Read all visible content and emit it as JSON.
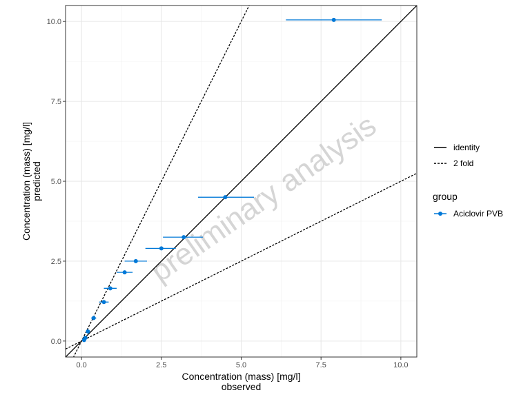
{
  "chart_data": {
    "type": "scatter",
    "xlabel_line1": "Concentration (mass) [mg/l]",
    "xlabel_line2": "observed",
    "ylabel_line1": "Concentration (mass) [mg/l]",
    "ylabel_line2": "predicted",
    "xlim": [
      -0.5,
      10.5
    ],
    "ylim": [
      -0.5,
      10.5
    ],
    "x_ticks": [
      0,
      2.5,
      5,
      7.5,
      10
    ],
    "x_tick_labels": [
      "0.0",
      "2.5",
      "5.0",
      "7.5",
      "10.0"
    ],
    "y_ticks": [
      0,
      2.5,
      5,
      7.5,
      10
    ],
    "y_tick_labels": [
      "0.0",
      "2.5",
      "5.0",
      "7.5",
      "10.0"
    ],
    "grid": true,
    "watermark": "preliminary analysis",
    "reference_lines": [
      {
        "name": "identity",
        "style": "solid",
        "slope": 1
      },
      {
        "name": "2 fold",
        "style": "dashed",
        "slopes": [
          2,
          0.5
        ]
      }
    ],
    "legend": {
      "placement": "right",
      "lines_entries": [
        "identity",
        "2 fold"
      ],
      "group_title": "group",
      "group_entries": [
        "Aciclovir PVB"
      ]
    },
    "series": [
      {
        "name": "Aciclovir PVB",
        "color": "#0078D7",
        "points": [
          {
            "x": 7.9,
            "y": 10.05,
            "xmin": 6.4,
            "xmax": 9.4
          },
          {
            "x": 4.5,
            "y": 4.5,
            "xmin": 3.65,
            "xmax": 5.4
          },
          {
            "x": 3.2,
            "y": 3.25,
            "xmin": 2.55,
            "xmax": 3.8
          },
          {
            "x": 2.5,
            "y": 2.9,
            "xmin": 2.0,
            "xmax": 2.95
          },
          {
            "x": 1.7,
            "y": 2.5,
            "xmin": 1.35,
            "xmax": 2.05
          },
          {
            "x": 1.35,
            "y": 2.15,
            "xmin": 1.1,
            "xmax": 1.6
          },
          {
            "x": 0.9,
            "y": 1.65,
            "xmin": 0.7,
            "xmax": 1.1
          },
          {
            "x": 0.7,
            "y": 1.22,
            "xmin": 0.55,
            "xmax": 0.85
          },
          {
            "x": 0.38,
            "y": 0.72,
            "xmin": 0.3,
            "xmax": 0.46
          },
          {
            "x": 0.2,
            "y": 0.3,
            "xmin": 0.15,
            "xmax": 0.25
          },
          {
            "x": 0.12,
            "y": 0.1,
            "xmin": 0.08,
            "xmax": 0.16
          },
          {
            "x": 0.08,
            "y": 0.03,
            "xmin": 0.05,
            "xmax": 0.11
          }
        ]
      }
    ]
  }
}
